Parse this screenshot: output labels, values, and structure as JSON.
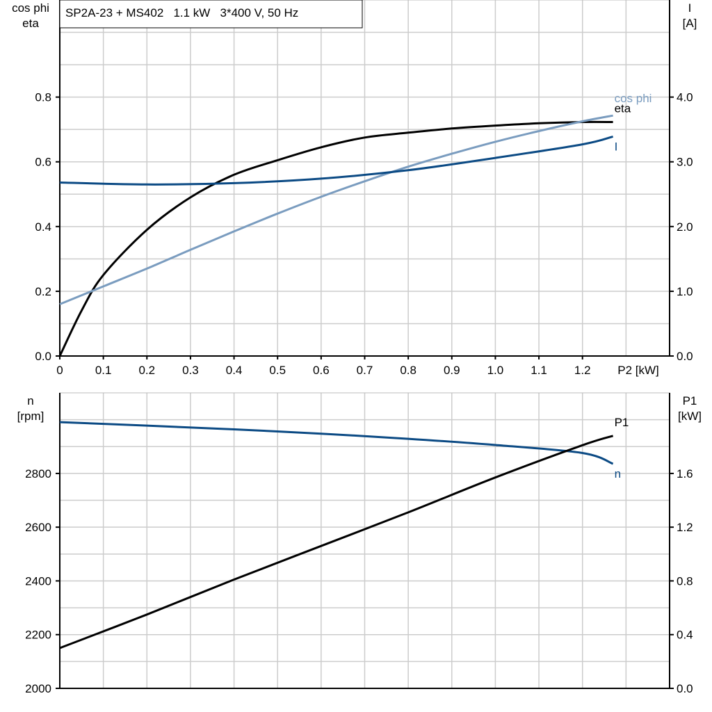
{
  "chart_data": [
    {
      "type": "line",
      "title": "SP2A-23 + MS402   1.1 kW   3*400 V, 50 Hz",
      "xlabel": "P2 [kW]",
      "ylabel_left": [
        "cos phi",
        "eta"
      ],
      "ylabel_right": [
        "I",
        "[A]"
      ],
      "xlim": [
        0,
        1.4
      ],
      "ylim_left": [
        0,
        1.1
      ],
      "ylim_right": [
        0,
        5.5
      ],
      "x_ticks": [
        "0",
        "0.1",
        "0.2",
        "0.3",
        "0.4",
        "0.5",
        "0.6",
        "0.7",
        "0.8",
        "0.9",
        "1.0",
        "1.1",
        "1.2"
      ],
      "y_ticks_left": [
        "0.0",
        "0.2",
        "0.4",
        "0.6",
        "0.8"
      ],
      "y_ticks_right": [
        "0.0",
        "1.0",
        "2.0",
        "3.0",
        "4.0"
      ],
      "grid": true,
      "series": [
        {
          "name": "eta",
          "axis": "left",
          "color": "#000000",
          "x": [
            0,
            0.05,
            0.1,
            0.2,
            0.3,
            0.4,
            0.5,
            0.6,
            0.7,
            0.8,
            0.9,
            1.0,
            1.1,
            1.2,
            1.27
          ],
          "y": [
            0,
            0.14,
            0.25,
            0.39,
            0.49,
            0.56,
            0.605,
            0.645,
            0.675,
            0.69,
            0.703,
            0.712,
            0.719,
            0.723,
            0.723
          ]
        },
        {
          "name": "cos phi",
          "axis": "left",
          "color": "#7a9cbf",
          "x": [
            0,
            0.1,
            0.2,
            0.3,
            0.4,
            0.5,
            0.6,
            0.7,
            0.8,
            0.9,
            1.0,
            1.1,
            1.2,
            1.27
          ],
          "y": [
            0.16,
            0.215,
            0.27,
            0.328,
            0.385,
            0.44,
            0.492,
            0.54,
            0.585,
            0.625,
            0.662,
            0.695,
            0.725,
            0.743
          ]
        },
        {
          "name": "I",
          "axis": "right",
          "color": "#0b4a84",
          "x": [
            0,
            0.2,
            0.4,
            0.6,
            0.8,
            1.0,
            1.2,
            1.27
          ],
          "y": [
            2.68,
            2.65,
            2.67,
            2.74,
            2.87,
            3.06,
            3.27,
            3.39
          ]
        }
      ]
    },
    {
      "type": "line",
      "xlim": [
        0,
        1.4
      ],
      "ylabel_left": [
        "n",
        "[rpm]"
      ],
      "ylabel_right": [
        "P1",
        "[kW]"
      ],
      "ylim_left": [
        2000,
        3100
      ],
      "ylim_right": [
        0,
        2.2
      ],
      "y_ticks_left": [
        "2000",
        "2200",
        "2400",
        "2600",
        "2800"
      ],
      "y_ticks_right": [
        "0.0",
        "0.4",
        "0.8",
        "1.2",
        "1.6"
      ],
      "grid": true,
      "series": [
        {
          "name": "n",
          "axis": "left",
          "color": "#0b4a84",
          "x": [
            0,
            0.2,
            0.4,
            0.6,
            0.8,
            1.0,
            1.2,
            1.27
          ],
          "y": [
            2991,
            2978,
            2964,
            2948,
            2929,
            2906,
            2876,
            2836
          ]
        },
        {
          "name": "P1",
          "axis": "right",
          "color": "#000000",
          "x": [
            0,
            0.2,
            0.4,
            0.6,
            0.8,
            1.0,
            1.2,
            1.27
          ],
          "y": [
            0.3,
            0.55,
            0.81,
            1.06,
            1.31,
            1.57,
            1.81,
            1.88
          ]
        }
      ]
    }
  ]
}
